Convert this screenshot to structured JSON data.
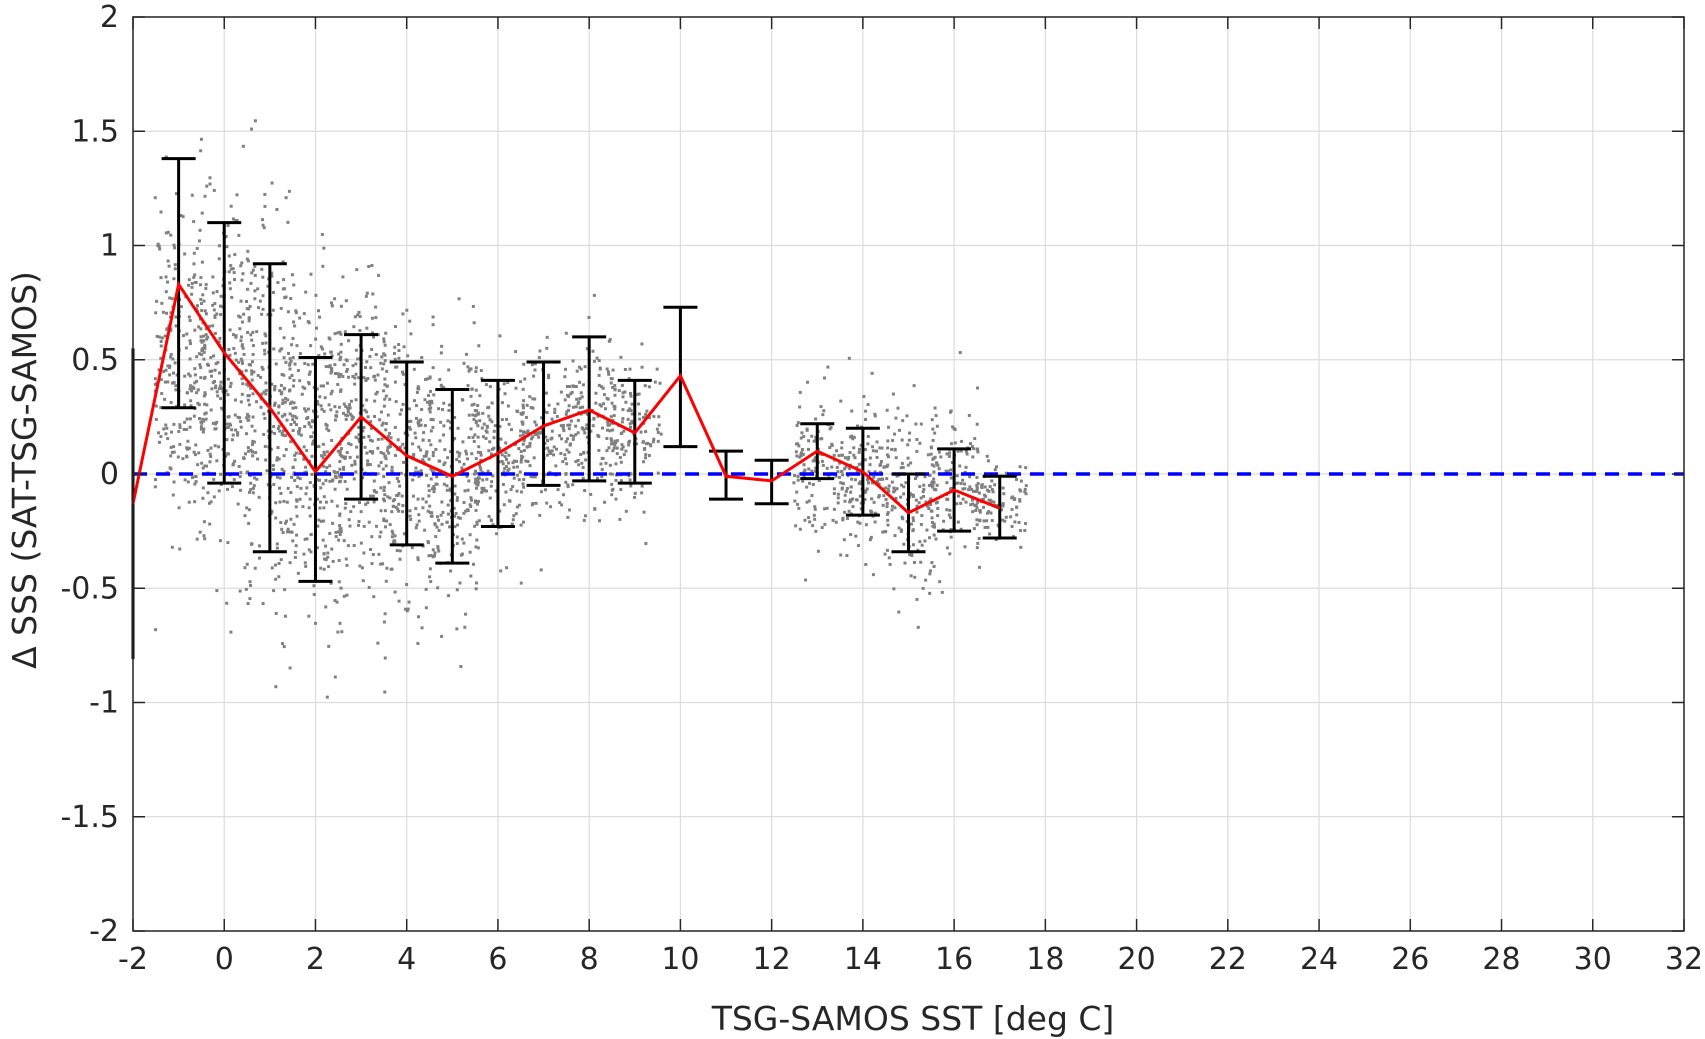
{
  "chart_data": {
    "type": "scatter",
    "title": "",
    "xlabel": "TSG-SAMOS SST [deg C]",
    "ylabel": "Δ SSS (SAT-TSG-SAMOS)",
    "xlim": [
      -2,
      32
    ],
    "ylim": [
      -2,
      2
    ],
    "xticks": [
      -2,
      0,
      2,
      4,
      6,
      8,
      10,
      12,
      14,
      16,
      18,
      20,
      22,
      24,
      26,
      28,
      30,
      32
    ],
    "yticks": [
      -2,
      -1.5,
      -1,
      -0.5,
      0,
      0.5,
      1,
      1.5,
      2
    ],
    "xtick_labels": [
      "-2",
      "0",
      "2",
      "4",
      "6",
      "8",
      "10",
      "12",
      "14",
      "16",
      "18",
      "20",
      "22",
      "24",
      "26",
      "28",
      "30",
      "32"
    ],
    "ytick_labels": [
      "-2",
      "-1.5",
      "-1",
      "-0.5",
      "0",
      "0.5",
      "1",
      "1.5",
      "2"
    ],
    "grid": true,
    "legend": null,
    "series": [
      {
        "type": "scatter",
        "color": "#808080",
        "description_density": [
          {
            "x": -1.0,
            "center": 0.5,
            "spread": 0.45
          },
          {
            "x": 0.0,
            "center": 0.4,
            "spread": 0.5
          },
          {
            "x": 1.0,
            "center": 0.25,
            "spread": 0.55
          },
          {
            "x": 2.0,
            "center": 0.1,
            "spread": 0.5
          },
          {
            "x": 3.0,
            "center": 0.15,
            "spread": 0.45
          },
          {
            "x": 4.0,
            "center": 0.05,
            "spread": 0.4
          },
          {
            "x": 5.0,
            "center": 0.0,
            "spread": 0.38
          },
          {
            "x": 6.0,
            "center": 0.05,
            "spread": 0.3
          },
          {
            "x": 7.0,
            "center": 0.15,
            "spread": 0.25
          },
          {
            "x": 8.0,
            "center": 0.2,
            "spread": 0.25
          },
          {
            "x": 9.0,
            "center": 0.2,
            "spread": 0.2
          },
          {
            "x": 13.0,
            "center": 0.05,
            "spread": 0.2
          },
          {
            "x": 14.0,
            "center": 0.0,
            "spread": 0.25
          },
          {
            "x": 15.0,
            "center": -0.1,
            "spread": 0.25
          },
          {
            "x": 16.0,
            "center": -0.05,
            "spread": 0.22
          },
          {
            "x": 17.0,
            "center": -0.12,
            "spread": 0.12
          }
        ]
      },
      {
        "type": "line",
        "color": "#ff0000",
        "x": [
          -2,
          -1,
          0,
          1,
          2,
          3,
          4,
          5,
          6,
          7,
          8,
          9,
          10,
          11,
          12,
          13,
          14,
          15,
          16,
          17
        ],
        "y": [
          -0.13,
          0.83,
          0.53,
          0.29,
          0.01,
          0.25,
          0.08,
          -0.01,
          0.09,
          0.21,
          0.28,
          0.18,
          0.43,
          -0.01,
          -0.03,
          0.1,
          0.01,
          -0.17,
          -0.07,
          -0.15
        ]
      },
      {
        "type": "errorbar",
        "color": "#000000",
        "x": [
          -2,
          -1,
          0,
          1,
          2,
          3,
          4,
          5,
          6,
          7,
          8,
          9,
          10,
          11,
          12,
          13,
          14,
          15,
          16,
          17
        ],
        "lower": [
          -0.81,
          0.29,
          -0.04,
          -0.34,
          -0.47,
          -0.11,
          -0.31,
          -0.39,
          -0.23,
          -0.05,
          -0.03,
          -0.04,
          0.12,
          -0.11,
          -0.13,
          -0.02,
          -0.18,
          -0.34,
          -0.25,
          -0.28
        ],
        "upper": [
          0.55,
          1.38,
          1.1,
          0.92,
          0.51,
          0.61,
          0.49,
          0.37,
          0.41,
          0.49,
          0.6,
          0.41,
          0.73,
          0.1,
          0.06,
          0.22,
          0.2,
          0.0,
          0.11,
          -0.01
        ]
      },
      {
        "type": "reference-line",
        "color": "#0000ff",
        "style": "dashed",
        "y": 0
      }
    ]
  }
}
